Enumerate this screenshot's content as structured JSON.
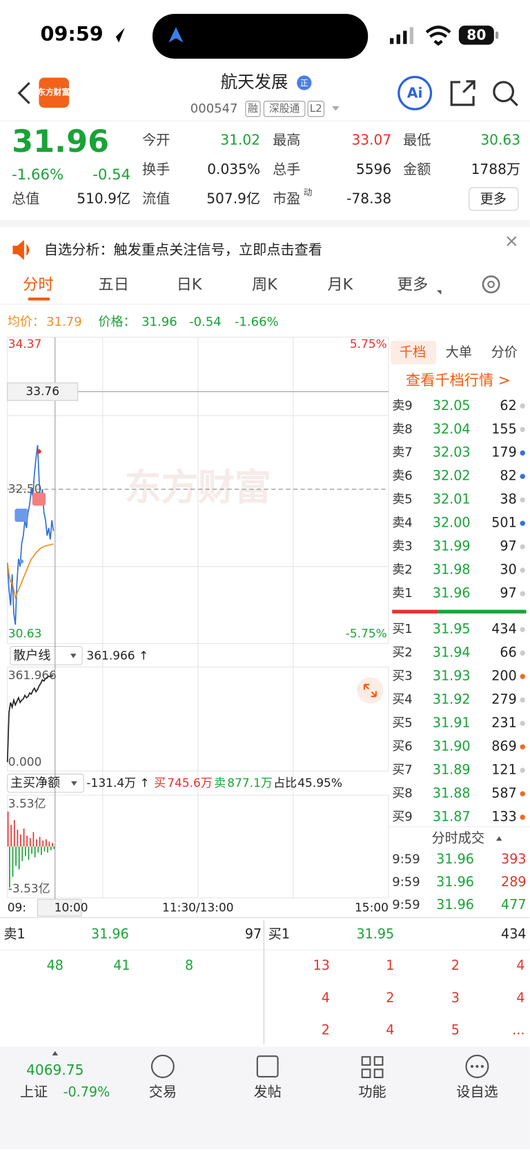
{
  "status_bar": {
    "time": "09:59",
    "battery": "80"
  },
  "header": {
    "logo": "东方财富",
    "title": "航天发展",
    "badge": "正",
    "code": "000547",
    "tags": [
      "融",
      "深股通",
      "L2"
    ],
    "ai": "Ai"
  },
  "quote": {
    "price": "31.96",
    "change_pct": "-1.66%",
    "change": "-0.54",
    "stats": [
      {
        "label": "今开",
        "value": "31.02"
      },
      {
        "label": "最高",
        "value": "33.07"
      },
      {
        "label": "最低",
        "value": "30.63"
      },
      {
        "label": "换手",
        "value": "0.035%"
      },
      {
        "label": "总手",
        "value": "5596"
      },
      {
        "label": "金额",
        "value": "1788万"
      },
      {
        "label": "总值",
        "value": "510.9亿"
      },
      {
        "label": "流值",
        "value": "507.9亿"
      },
      {
        "label": "市盈",
        "sup": "动",
        "value": "-78.38"
      }
    ],
    "more": "更多"
  },
  "notice": {
    "text": "自选分析：触发重点关注信号，立即点击查看"
  },
  "tabs": [
    "分时",
    "五日",
    "日K",
    "周K",
    "月K",
    "更多"
  ],
  "info_line": {
    "avg_label": "均价：",
    "avg": "31.79",
    "price_label": "价格：",
    "price": "31.96",
    "change": "-0.54",
    "change_pct": "-1.66%"
  },
  "watermark": "东方财富",
  "chart_data": [
    {
      "type": "line",
      "ylim": [
        30.63,
        34.37
      ],
      "yticks": [
        34.37,
        {
          "value": 32.5,
          "label": "32.50"
        },
        30.63
      ],
      "y2lim": [
        -5.75,
        5.75
      ],
      "y2ticks": [
        {
          "value": 5.75,
          "label": "5.75%"
        },
        {
          "value": -5.75,
          "label": "-5.75%"
        }
      ],
      "xlim": [
        0,
        240
      ],
      "xticks": [
        {
          "value": 0,
          "label": "09:"
        },
        {
          "value": 30,
          "label": "10:00"
        },
        {
          "value": 120,
          "label": "11:30/13:00"
        },
        {
          "value": 240,
          "label": "15:00"
        }
      ],
      "crosshair": {
        "value": 33.76,
        "label": "33.76"
      },
      "series": [
        {
          "color": "#2f6fd6",
          "x": [
            0,
            1,
            2,
            3,
            4,
            5,
            6,
            7,
            8,
            9,
            10,
            11,
            12,
            13,
            14,
            15,
            16,
            17,
            18,
            19,
            20,
            21,
            22,
            23,
            24,
            25,
            26,
            27,
            28,
            29
          ],
          "values": [
            31.55,
            31.2,
            31.0,
            31.4,
            30.9,
            30.75,
            31.3,
            31.6,
            31.5,
            31.8,
            31.9,
            32.1,
            32.0,
            32.2,
            32.3,
            32.5,
            32.4,
            32.7,
            32.9,
            33.07,
            32.6,
            32.3,
            32.5,
            32.2,
            32.1,
            31.9,
            32.0,
            31.85,
            32.1,
            31.96
          ]
        },
        {
          "color": "#f0901e",
          "x": [
            0,
            1,
            2,
            3,
            4,
            5,
            6,
            7,
            8,
            9,
            10,
            11,
            12,
            13,
            14,
            15,
            16,
            17,
            18,
            19,
            20,
            21,
            22,
            23,
            24,
            25,
            26,
            27,
            28,
            29
          ],
          "values": [
            31.55,
            31.4,
            31.3,
            31.3,
            31.2,
            31.1,
            31.15,
            31.2,
            31.25,
            31.3,
            31.35,
            31.4,
            31.45,
            31.5,
            31.55,
            31.6,
            31.62,
            31.65,
            31.68,
            31.7,
            31.72,
            31.74,
            31.75,
            31.76,
            31.77,
            31.77,
            31.78,
            31.78,
            31.79,
            31.79
          ]
        }
      ]
    },
    {
      "type": "line",
      "title": "散户线",
      "value_text": "361.966 ↑",
      "ylim": [
        0,
        361.966
      ],
      "yticks": [
        361.966,
        {
          "value": 0,
          "label": "0.000"
        }
      ],
      "xlim": [
        0,
        240
      ],
      "series": [
        {
          "color": "#222222",
          "x": [
            0,
            1,
            2,
            3,
            4,
            5,
            6,
            7,
            8,
            9,
            10,
            11,
            12,
            13,
            14,
            15,
            16,
            17,
            18,
            19,
            20,
            21,
            22,
            23,
            24,
            25,
            26,
            27,
            28,
            29
          ],
          "values": [
            0,
            210,
            250,
            230,
            260,
            240,
            255,
            270,
            250,
            260,
            265,
            280,
            270,
            275,
            290,
            285,
            300,
            310,
            295,
            305,
            320,
            330,
            345,
            340,
            350,
            355,
            360,
            358,
            361,
            361.966
          ]
        }
      ]
    },
    {
      "type": "bar",
      "title": "主买净额",
      "summary": {
        "net": "-131.4万 ↑",
        "buy_label": "买",
        "buy": "745.6万",
        "sell_label": "卖",
        "sell": "877.1万",
        "ratio_label": "占比",
        "ratio": "45.95%"
      },
      "ylim": [
        -3.53,
        3.53
      ],
      "yticks": [
        {
          "value": 3.53,
          "label": "3.53亿"
        },
        {
          "value": -3.53,
          "label": "-3.53亿"
        }
      ],
      "xlim": [
        0,
        240
      ],
      "colors": [
        "#e6322e",
        "#19a337"
      ],
      "x": [
        0,
        1,
        2,
        3,
        4,
        5,
        6,
        7,
        8,
        9,
        10,
        11,
        12,
        13,
        14,
        15,
        16,
        17,
        18,
        19,
        20,
        21,
        22,
        23,
        24,
        25,
        26,
        27,
        28,
        29
      ],
      "values": [
        2.9,
        -3.4,
        1.8,
        -2.5,
        2.2,
        -1.6,
        1.4,
        -1.9,
        1.0,
        -1.2,
        1.5,
        -0.8,
        0.9,
        -1.1,
        0.7,
        -0.6,
        1.2,
        -0.9,
        0.6,
        -0.5,
        0.8,
        -0.7,
        0.5,
        -0.4,
        0.6,
        -0.5,
        0.4,
        -0.3,
        0.3,
        -0.2
      ]
    }
  ],
  "order_book": {
    "tabs": [
      "千档",
      "大单",
      "分价"
    ],
    "link": "查看千档行情 >",
    "asks": [
      {
        "label": "卖9",
        "price": "32.05",
        "qty": "62"
      },
      {
        "label": "卖8",
        "price": "32.04",
        "qty": "155"
      },
      {
        "label": "卖7",
        "price": "32.03",
        "qty": "179"
      },
      {
        "label": "卖6",
        "price": "32.02",
        "qty": "82"
      },
      {
        "label": "卖5",
        "price": "32.01",
        "qty": "38"
      },
      {
        "label": "卖4",
        "price": "32.00",
        "qty": "501"
      },
      {
        "label": "卖3",
        "price": "31.99",
        "qty": "97"
      },
      {
        "label": "卖2",
        "price": "31.98",
        "qty": "30"
      },
      {
        "label": "卖1",
        "price": "31.96",
        "qty": "97"
      }
    ],
    "bids": [
      {
        "label": "买1",
        "price": "31.95",
        "qty": "434"
      },
      {
        "label": "买2",
        "price": "31.94",
        "qty": "66"
      },
      {
        "label": "买3",
        "price": "31.93",
        "qty": "200"
      },
      {
        "label": "买4",
        "price": "31.92",
        "qty": "279"
      },
      {
        "label": "买5",
        "price": "31.91",
        "qty": "231"
      },
      {
        "label": "买6",
        "price": "31.90",
        "qty": "869"
      },
      {
        "label": "买7",
        "price": "31.89",
        "qty": "121"
      },
      {
        "label": "买8",
        "price": "31.88",
        "qty": "587"
      },
      {
        "label": "买9",
        "price": "31.87",
        "qty": "133"
      }
    ],
    "trades_title": "分时成交",
    "trades": [
      {
        "time": "9:59",
        "price": "31.96",
        "qty": "393"
      },
      {
        "time": "9:59",
        "price": "31.96",
        "qty": "289"
      },
      {
        "time": "9:59",
        "price": "31.96",
        "qty": "477"
      }
    ]
  },
  "bottom_quote": {
    "ask": {
      "label": "卖1",
      "price": "31.96",
      "qty": "97"
    },
    "bid": {
      "label": "买1",
      "price": "31.95",
      "qty": "434"
    },
    "ask_orders": [
      "48",
      "41",
      "8"
    ],
    "bid_orders": [
      [
        "13",
        "1",
        "2",
        "4"
      ],
      [
        "4",
        "2",
        "3",
        "4"
      ],
      [
        "2",
        "4",
        "5",
        "..."
      ]
    ]
  },
  "nav": {
    "index_value": "4069.75",
    "index_name": "上证",
    "index_change": "-0.79%",
    "items": [
      "交易",
      "发帖",
      "功能",
      "设自选"
    ]
  }
}
